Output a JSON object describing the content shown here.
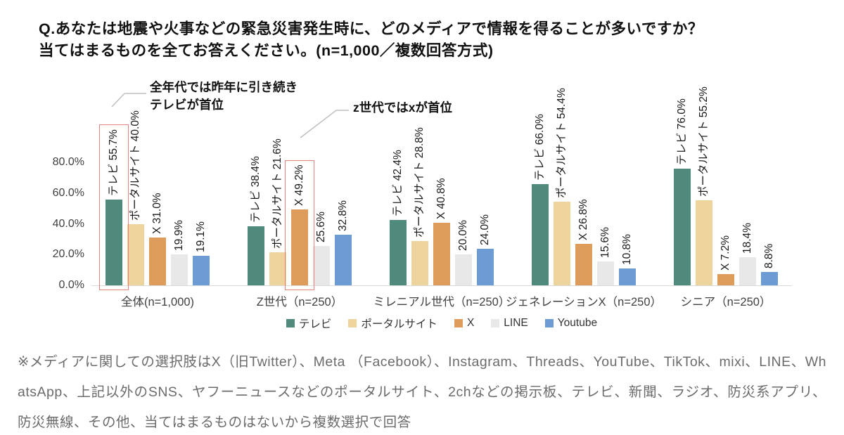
{
  "title": {
    "line1": "Q.あなたは地震や火事などの緊急災害発生時に、どのメディアで情報を得ることが多いですか？",
    "line2": "当てはまるものを全てお答えください。(n=1,000／複数回答方式)"
  },
  "annotations": [
    {
      "line1": "全年代では昨年に引き続き",
      "line2": "テレビが首位"
    },
    {
      "line1": "z世代ではxが首位",
      "line2": ""
    }
  ],
  "chart_data": {
    "type": "bar",
    "title": "緊急災害発生時に情報を得るメディア",
    "categories": [
      "全体(n=1,000)",
      "Z世代（n=250）",
      "ミレニアル世代（n=250）",
      "ジェネレーションX（n=250）",
      "シニア（n=250）"
    ],
    "series": [
      {
        "name": "テレビ",
        "color": "#4f8a7d",
        "label_prefix": "テレビ ",
        "values": [
          55.7,
          38.4,
          42.4,
          66.0,
          76.0
        ]
      },
      {
        "name": "ポータルサイト",
        "color": "#ecd49c",
        "label_prefix": "ポータルサイト ",
        "values": [
          40.0,
          21.6,
          28.8,
          54.4,
          55.2
        ]
      },
      {
        "name": "X",
        "color": "#dd9c59",
        "label_prefix": "X ",
        "values": [
          31.0,
          49.2,
          40.8,
          26.8,
          7.2
        ]
      },
      {
        "name": "LINE",
        "color": "#e8e8e8",
        "label_prefix": "",
        "values": [
          19.9,
          25.6,
          20.0,
          15.6,
          18.4
        ]
      },
      {
        "name": "Youtube",
        "color": "#6d9bd3",
        "label_prefix": "",
        "values": [
          19.1,
          32.8,
          24.0,
          10.8,
          8.8
        ]
      }
    ],
    "yticks": [
      {
        "label": "0.0%",
        "value": 0
      },
      {
        "label": "20.0%",
        "value": 20
      },
      {
        "label": "40.0%",
        "value": 40
      },
      {
        "label": "60.0%",
        "value": 60
      },
      {
        "label": "80.0%",
        "value": 80
      }
    ],
    "ylim": [
      0,
      100
    ],
    "xlabel": "",
    "ylabel": "",
    "grid": false,
    "legend_position": "bottom",
    "value_label_format": "one-decimal-percent-rotated",
    "highlights": [
      {
        "group": 0,
        "series": 0,
        "note": "全年代では昨年に引き続きテレビが首位"
      },
      {
        "group": 1,
        "series": 2,
        "note": "z世代ではxが首位"
      }
    ],
    "highlight_color": "#e8837c"
  },
  "footnote": "※メディアに関しての選択肢はX（旧Twitter）、Meta （Facebook）、Instagram、Threads、YouTube、TikTok、mixi、LINE、WhatsApp、上記以外のSNS、ヤフーニュースなどのポータルサイト、2chなどの掲示板、テレビ、新聞、ラジオ、防災系アプリ、防災無線、その他、当てはまるものはないから複数選択で回答"
}
